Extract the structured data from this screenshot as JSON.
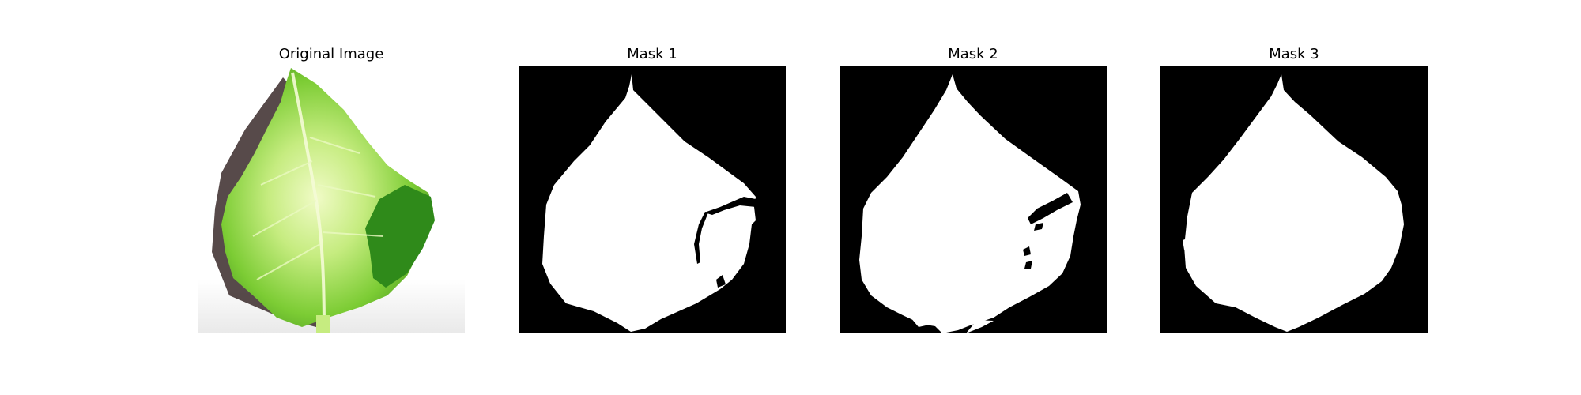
{
  "figure": {
    "panels": [
      {
        "title": "Original Image"
      },
      {
        "title": "Mask 1"
      },
      {
        "title": "Mask 2"
      },
      {
        "title": "Mask 3"
      }
    ]
  },
  "colors": {
    "background": "#ffffff",
    "mask_background": "#000000",
    "mask_foreground": "#ffffff",
    "leaf_dark": "#3f8a1e",
    "leaf_mid": "#7ccc34",
    "leaf_light": "#d8f29a",
    "shadow": "#3a2a2a"
  }
}
